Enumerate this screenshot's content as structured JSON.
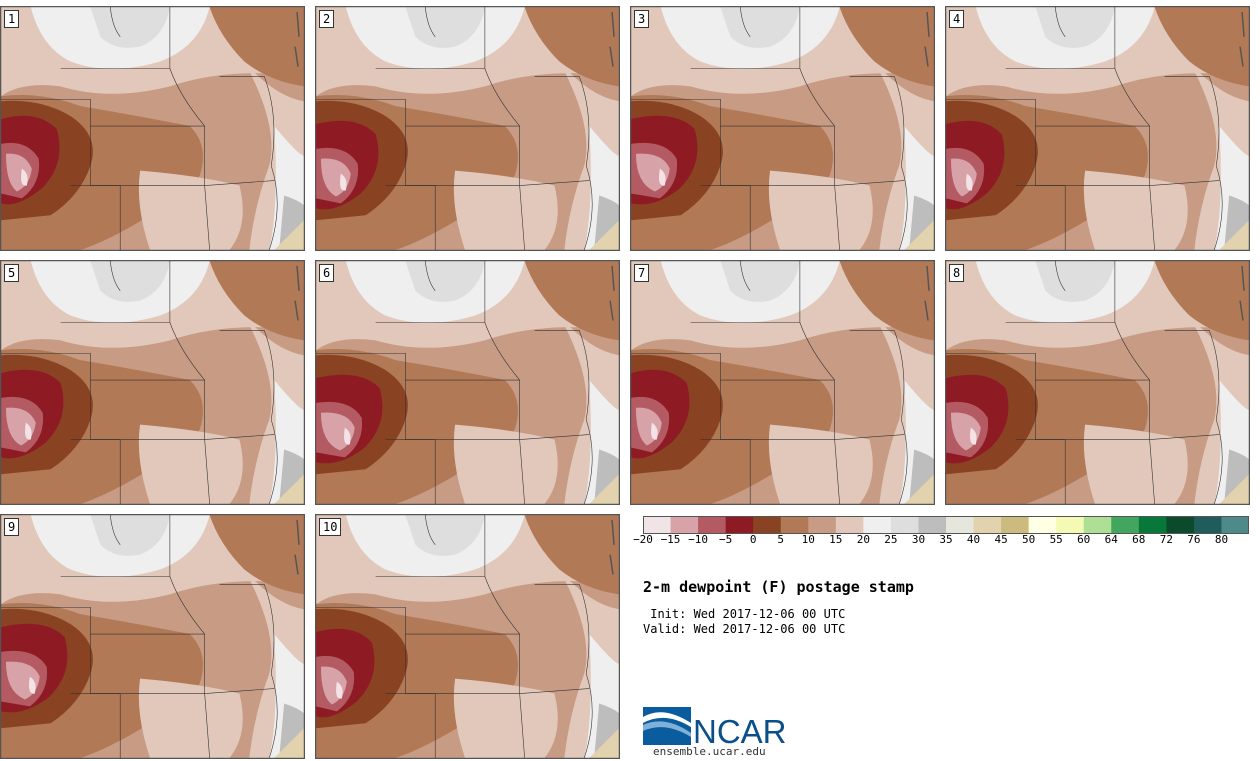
{
  "panels": [
    "1",
    "2",
    "3",
    "4",
    "5",
    "6",
    "7",
    "8",
    "9",
    "10"
  ],
  "colorbar": {
    "colors": [
      "#f1e4e6",
      "#d7a3a9",
      "#b35a62",
      "#8e1a24",
      "#8a4322",
      "#b27957",
      "#c89b84",
      "#e1c8ba",
      "#efefef",
      "#dedede",
      "#bdbdbd",
      "#e6e6dd",
      "#e2d3ae",
      "#cdba7d",
      "#ffffe3",
      "#f4f9b4",
      "#addf94",
      "#42a65e",
      "#08783a",
      "#0b4b2c",
      "#1f5d5c",
      "#4c8b8a"
    ],
    "labels": [
      "−20",
      "−15",
      "−10",
      "−5",
      "0",
      "5",
      "10",
      "15",
      "20",
      "25",
      "30",
      "35",
      "40",
      "45",
      "50",
      "55",
      "60",
      "64",
      "68",
      "72",
      "76",
      "80"
    ]
  },
  "title": "2-m dewpoint (F) postage stamp",
  "init": " Init: Wed 2017-12-06 00 UTC",
  "valid": "Valid: Wed 2017-12-06 00 UTC",
  "logo_text": "NCAR",
  "site": "ensemble.ucar.edu"
}
